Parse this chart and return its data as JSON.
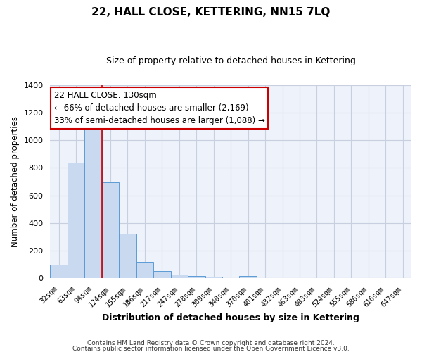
{
  "title": "22, HALL CLOSE, KETTERING, NN15 7LQ",
  "subtitle": "Size of property relative to detached houses in Kettering",
  "xlabel": "Distribution of detached houses by size in Kettering",
  "ylabel": "Number of detached properties",
  "categories": [
    "32sqm",
    "63sqm",
    "94sqm",
    "124sqm",
    "155sqm",
    "186sqm",
    "217sqm",
    "247sqm",
    "278sqm",
    "309sqm",
    "340sqm",
    "370sqm",
    "401sqm",
    "432sqm",
    "463sqm",
    "493sqm",
    "524sqm",
    "555sqm",
    "586sqm",
    "616sqm",
    "647sqm"
  ],
  "values": [
    100,
    838,
    1075,
    693,
    325,
    120,
    55,
    28,
    18,
    10,
    0,
    15,
    0,
    0,
    0,
    0,
    0,
    0,
    0,
    0,
    0
  ],
  "bar_color": "#c9d9f0",
  "bar_edge_color": "#5b9bd5",
  "vline_x_index": 3,
  "vline_color": "#cc0000",
  "ylim": [
    0,
    1400
  ],
  "yticks": [
    0,
    200,
    400,
    600,
    800,
    1000,
    1200,
    1400
  ],
  "annotation_title": "22 HALL CLOSE: 130sqm",
  "annotation_line1": "← 66% of detached houses are smaller (2,169)",
  "annotation_line2": "33% of semi-detached houses are larger (1,088) →",
  "annotation_box_color": "#ffffff",
  "annotation_box_edge": "#cc0000",
  "footer1": "Contains HM Land Registry data © Crown copyright and database right 2024.",
  "footer2": "Contains public sector information licensed under the Open Government Licence v3.0.",
  "bg_color": "#ffffff",
  "plot_bg_color": "#eef2fa",
  "grid_color": "#c8d0e0",
  "title_fontsize": 11,
  "subtitle_fontsize": 9
}
